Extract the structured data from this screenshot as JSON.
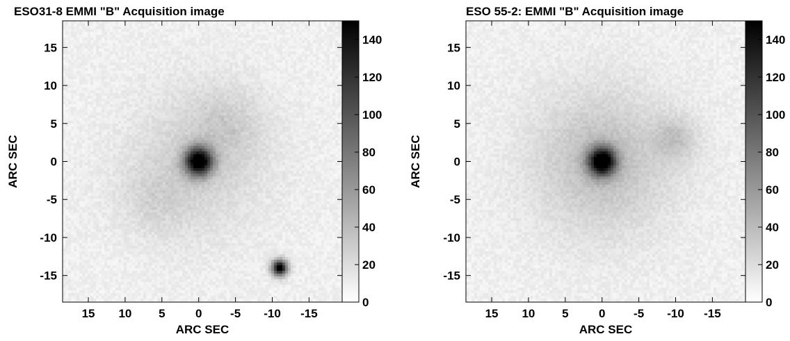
{
  "chart_data": [
    {
      "type": "heatmap",
      "title": "ESO31-8 EMMI \"B\" Acquisition image",
      "xlabel": "ARC SEC",
      "ylabel": "ARC SEC",
      "x_axis_reversed": true,
      "xlim": [
        18.5,
        -19.5
      ],
      "ylim": [
        -18.5,
        18.5
      ],
      "x_ticks": [
        15,
        10,
        5,
        0,
        -5,
        -10,
        -15
      ],
      "x_tick_labels": [
        "15",
        "10",
        "5",
        "0",
        "-5",
        "-10",
        "-15"
      ],
      "y_ticks": [
        15,
        10,
        5,
        0,
        -5,
        -10,
        -15
      ],
      "y_tick_labels": [
        "15",
        "10",
        "5",
        "0",
        "-5",
        "-10",
        "-15"
      ],
      "colorbar": {
        "min": 0,
        "max": 150,
        "ticks": [
          0,
          20,
          40,
          60,
          80,
          100,
          120,
          140
        ],
        "tick_labels": [
          "0",
          "20",
          "40",
          "60",
          "80",
          "100",
          "120",
          "140"
        ]
      },
      "colormap": "inverted-grayscale",
      "sources": [
        {
          "kind": "core",
          "x": 0,
          "y": 0,
          "peak": 150
        },
        {
          "kind": "star",
          "x": -11,
          "y": -14,
          "peak": 150
        },
        {
          "kind": "disk",
          "x": 0,
          "y": 0,
          "peak": 18
        },
        {
          "kind": "arm",
          "x": -4,
          "y": 5,
          "peak": 14
        },
        {
          "kind": "arm",
          "x": 6,
          "y": -5,
          "peak": 12
        }
      ]
    },
    {
      "type": "heatmap",
      "title": "ESO 55-2: EMMI \"B\" Acquisition image",
      "xlabel": "ARC SEC",
      "ylabel": "ARC SEC",
      "x_axis_reversed": true,
      "xlim": [
        18.5,
        -19.5
      ],
      "ylim": [
        -18.5,
        18.5
      ],
      "x_ticks": [
        15,
        10,
        5,
        0,
        -5,
        -10,
        -15
      ],
      "x_tick_labels": [
        "15",
        "10",
        "5",
        "0",
        "-5",
        "-10",
        "-15"
      ],
      "y_ticks": [
        15,
        10,
        5,
        0,
        -5,
        -10,
        -15
      ],
      "y_tick_labels": [
        "15",
        "10",
        "5",
        "0",
        "-5",
        "-10",
        "-15"
      ],
      "colorbar": {
        "min": 0,
        "max": 150,
        "ticks": [
          0,
          20,
          40,
          60,
          80,
          100,
          120,
          140
        ],
        "tick_labels": [
          "0",
          "20",
          "40",
          "60",
          "80",
          "100",
          "120",
          "140"
        ]
      },
      "colormap": "inverted-grayscale",
      "sources": [
        {
          "kind": "core",
          "x": 0,
          "y": 0,
          "peak": 150
        },
        {
          "kind": "disk",
          "x": 0,
          "y": 0,
          "peak": 30
        },
        {
          "kind": "knot",
          "x": -10,
          "y": 3,
          "peak": 22
        }
      ]
    }
  ]
}
